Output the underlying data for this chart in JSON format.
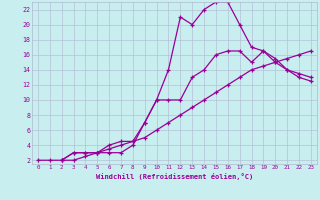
{
  "xlabel": "Windchill (Refroidissement éolien,°C)",
  "bg_color": "#c8eef0",
  "grid_color": "#b0b8d0",
  "line_color": "#990099",
  "xlim": [
    -0.5,
    23.5
  ],
  "ylim": [
    1.5,
    23.0
  ],
  "xticks": [
    0,
    1,
    2,
    3,
    4,
    5,
    6,
    7,
    8,
    9,
    10,
    11,
    12,
    13,
    14,
    15,
    16,
    17,
    18,
    19,
    20,
    21,
    22,
    23
  ],
  "yticks": [
    2,
    4,
    6,
    8,
    10,
    12,
    14,
    16,
    18,
    20,
    22
  ],
  "line1_x": [
    2,
    3,
    4,
    5,
    6,
    7,
    8,
    9,
    10,
    11,
    12,
    13,
    14,
    15,
    16,
    17,
    18,
    19,
    20,
    21,
    22,
    23
  ],
  "line1_y": [
    2,
    3,
    3,
    3,
    3,
    3,
    4,
    7,
    10,
    14,
    21,
    20,
    22,
    23,
    23,
    20,
    17,
    16.5,
    15,
    14,
    13,
    12.5
  ],
  "line2_x": [
    2,
    3,
    4,
    5,
    6,
    7,
    8,
    9,
    10,
    11,
    12,
    13,
    14,
    15,
    16,
    17,
    18,
    19,
    20,
    21,
    22,
    23
  ],
  "line2_y": [
    2,
    3,
    3,
    3,
    4,
    4.5,
    4.5,
    7,
    10,
    10,
    10,
    13,
    14,
    16,
    16.5,
    16.5,
    15,
    16.5,
    15.5,
    14,
    13.5,
    13
  ],
  "line3_x": [
    0,
    1,
    2,
    3,
    4,
    5,
    6,
    7,
    8,
    9,
    10,
    11,
    12,
    13,
    14,
    15,
    16,
    17,
    18,
    19,
    20,
    21,
    22,
    23
  ],
  "line3_y": [
    2,
    2,
    2,
    2,
    2.5,
    3,
    3.5,
    4,
    4.5,
    5,
    6,
    7,
    8,
    9,
    10,
    11,
    12,
    13,
    14,
    14.5,
    15,
    15.5,
    16,
    16.5
  ]
}
